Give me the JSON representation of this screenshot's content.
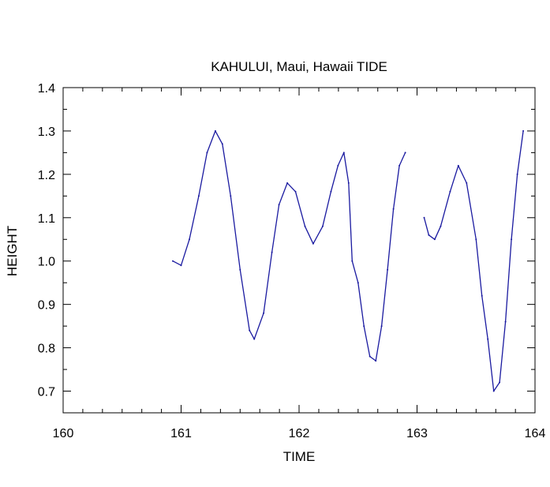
{
  "chart_data": {
    "type": "line",
    "title": "KAHULUI, Maui, Hawaii TIDE",
    "xlabel": "TIME",
    "ylabel": "HEIGHT",
    "xlim": [
      160,
      164
    ],
    "ylim": [
      0.65,
      1.4
    ],
    "xticks": [
      160,
      161,
      162,
      163,
      164
    ],
    "yticks": [
      0.7,
      0.8,
      0.9,
      1.0,
      1.1,
      1.2,
      1.3,
      1.4
    ],
    "xtick_labels": [
      "160",
      "161",
      "162",
      "163",
      "164"
    ],
    "ytick_labels": [
      "0.7",
      "0.8",
      "0.9",
      "1.0",
      "1.1",
      "1.2",
      "1.3",
      "1.4"
    ],
    "x_minor_step": 0.1667,
    "y_minor_step": 0.05,
    "grid": false,
    "line_color": "#1a1aa0",
    "series": [
      {
        "segments": [
          {
            "x": [
              160.93,
              161.0,
              161.07,
              161.15,
              161.22,
              161.29,
              161.35,
              161.42,
              161.5,
              161.58,
              161.62,
              161.7,
              161.77,
              161.83,
              161.9,
              161.97,
              162.05,
              162.12,
              162.2,
              162.27,
              162.33,
              162.38,
              162.42,
              162.45,
              162.5,
              162.55,
              162.6,
              162.65,
              162.7,
              162.75,
              162.8,
              162.85,
              162.9
            ],
            "y": [
              1.0,
              0.99,
              1.05,
              1.15,
              1.25,
              1.3,
              1.27,
              1.15,
              0.98,
              0.84,
              0.82,
              0.88,
              1.02,
              1.13,
              1.18,
              1.16,
              1.08,
              1.04,
              1.08,
              1.16,
              1.22,
              1.25,
              1.18,
              1.0,
              0.95,
              0.85,
              0.78,
              0.77,
              0.85,
              0.98,
              1.12,
              1.22,
              1.25
            ]
          },
          {
            "x": [
              163.06,
              163.1,
              163.15,
              163.2,
              163.28,
              163.35,
              163.42,
              163.5,
              163.55,
              163.6,
              163.65,
              163.7,
              163.75,
              163.8,
              163.85,
              163.9
            ],
            "y": [
              1.1,
              1.06,
              1.05,
              1.08,
              1.16,
              1.22,
              1.18,
              1.05,
              0.92,
              0.82,
              0.7,
              0.72,
              0.86,
              1.05,
              1.2,
              1.3
            ]
          }
        ]
      }
    ]
  }
}
